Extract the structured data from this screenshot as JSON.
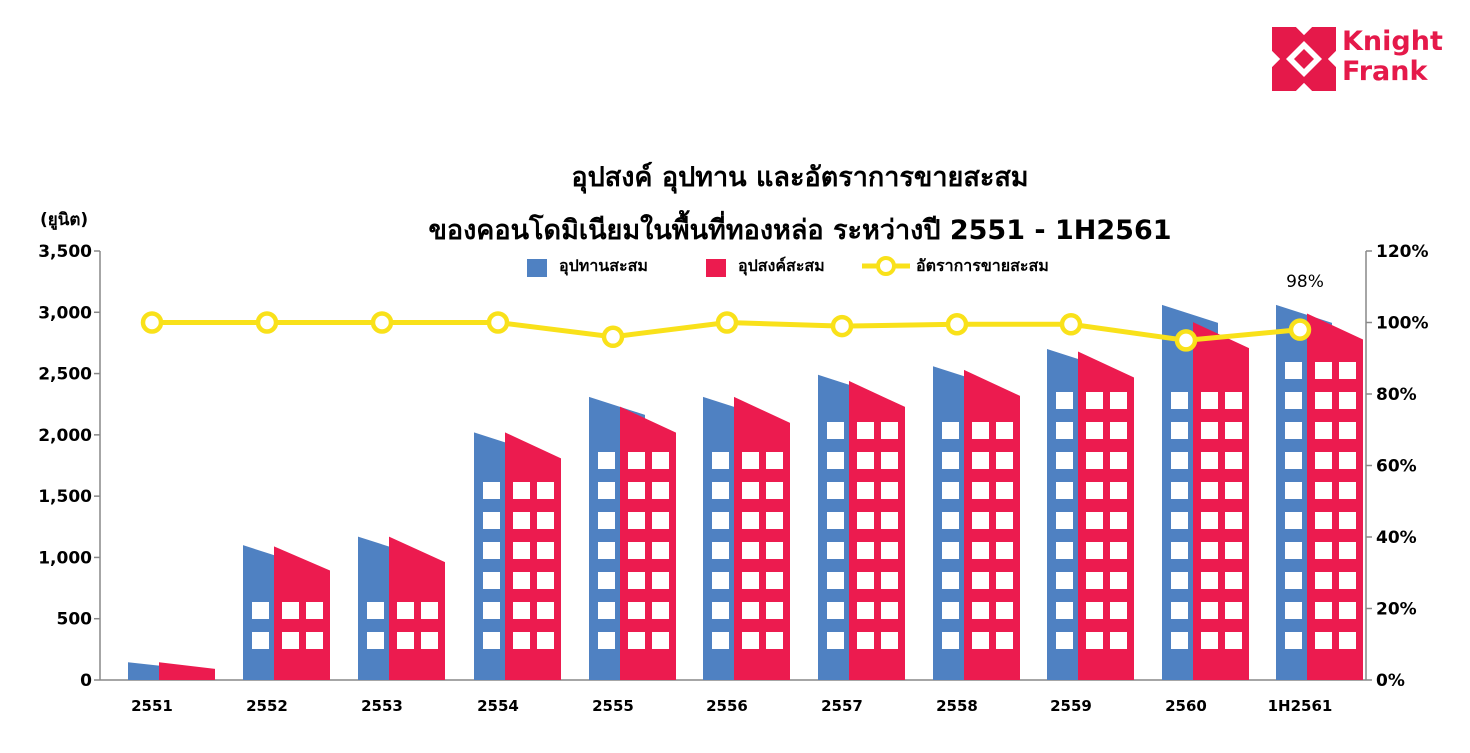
{
  "logo": {
    "line1": "Knight",
    "line2": "Frank"
  },
  "colors": {
    "supply": "#4f81c2",
    "demand": "#ec1b4f",
    "rate": "#f9e11a",
    "brand": "#e5194a"
  },
  "chart_data": {
    "type": "bar",
    "title": "อุปสงค์ อุปทาน และอัตราการขายสะสม",
    "subtitle": "ของคอนโดมิเนียมในพื้นที่ทองหล่อ ระหว่างปี 2551 - 1H2561",
    "ylabel": "(ยูนิต)",
    "ylim": [
      0,
      3500
    ],
    "yticks": [
      "0",
      "500",
      "1,000",
      "1,500",
      "2,000",
      "2,500",
      "3,000",
      "3,500"
    ],
    "y2lim": [
      0,
      120
    ],
    "y2ticks": [
      "0%",
      "20%",
      "40%",
      "60%",
      "80%",
      "100%",
      "120%"
    ],
    "categories": [
      "2551",
      "2552",
      "2553",
      "2554",
      "2555",
      "2556",
      "2557",
      "2558",
      "2559",
      "2560",
      "1H2561"
    ],
    "series": [
      {
        "name": "อุปทานสะสม",
        "axis": "left",
        "values": [
          145,
          1100,
          1170,
          2020,
          2310,
          2310,
          2490,
          2560,
          2700,
          3060,
          3060
        ]
      },
      {
        "name": "อุปสงค์สะสม",
        "axis": "left",
        "values": [
          145,
          1090,
          1170,
          2020,
          2230,
          2310,
          2440,
          2530,
          2680,
          2920,
          2990
        ]
      },
      {
        "name": "อัตราการขายสะสม",
        "axis": "right",
        "type": "line",
        "values": [
          100,
          100,
          100,
          100,
          96,
          100,
          99,
          99.5,
          99.5,
          95,
          98
        ]
      }
    ],
    "annotations": [
      {
        "category": "1H2561",
        "text": "98%"
      }
    ],
    "legend": "top-center",
    "grid": false
  }
}
